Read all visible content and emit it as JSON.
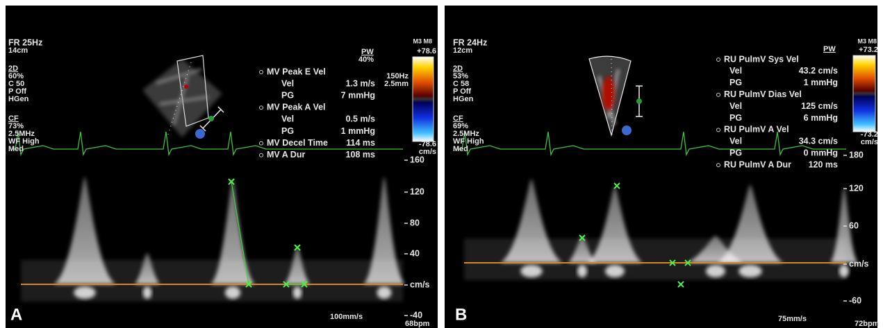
{
  "panels": [
    {
      "label": "A",
      "frame_rate": "FR 25Hz",
      "depth": "14cm",
      "settings_2d": {
        "title": "2D",
        "values": [
          "60%",
          "C 50",
          "P Off",
          "HGen"
        ]
      },
      "settings_cf": {
        "title": "CF",
        "values": [
          "73%",
          "2.5MHz",
          "WF High",
          "Med"
        ]
      },
      "probe": "M3 M8",
      "pw": {
        "title": "PW",
        "values": [
          "40%",
          "150Hz",
          "2.5mm"
        ]
      },
      "color_scale": {
        "max": "+78.6",
        "min": "-78.6",
        "unit": "cm/s"
      },
      "measurements": [
        {
          "name": "MV Peak E Vel",
          "rows": [
            [
              "Vel",
              "1.3 m/s"
            ],
            [
              "PG",
              "7 mmHg"
            ]
          ]
        },
        {
          "name": "MV Peak A Vel",
          "rows": [
            [
              "Vel",
              "0.5 m/s"
            ],
            [
              "PG",
              "1 mmHg"
            ]
          ]
        },
        {
          "name": "MV Decel Time",
          "value": "114 ms"
        },
        {
          "name": "MV A Dur",
          "value": "108 ms"
        }
      ],
      "velocity_scale": {
        "labels": [
          "160",
          "120",
          "80",
          "40",
          "-40"
        ],
        "unit": "cm/s"
      },
      "sweep": "100mm/s",
      "heart_rate": "68bpm"
    },
    {
      "label": "B",
      "frame_rate": "FR 24Hz",
      "depth": "12cm",
      "settings_2d": {
        "title": "2D",
        "values": [
          "53%",
          "C 58",
          "P Off",
          "HGen"
        ]
      },
      "settings_cf": {
        "title": "CF",
        "values": [
          "69%",
          "2.5MHz",
          "WF High",
          "Med"
        ]
      },
      "probe": "M3 M8",
      "pw": {
        "title": "PW"
      },
      "color_scale": {
        "max": "+73.2",
        "min": "-73.2",
        "unit": "cm/s"
      },
      "measurements": [
        {
          "name": "RU PulmV Sys Vel",
          "rows": [
            [
              "Vel",
              "43.2 cm/s"
            ],
            [
              "PG",
              "1 mmHg"
            ]
          ]
        },
        {
          "name": "RU PulmV Dias Vel",
          "rows": [
            [
              "Vel",
              "125 cm/s"
            ],
            [
              "PG",
              "6 mmHg"
            ]
          ]
        },
        {
          "name": "RU PulmV A Vel",
          "rows": [
            [
              "Vel",
              "34.3 cm/s"
            ],
            [
              "PG",
              "0 mmHg"
            ]
          ]
        },
        {
          "name": "RU PulmV A Dur",
          "value": "120 ms"
        }
      ],
      "velocity_scale": {
        "labels": [
          "180",
          "120",
          "60",
          "-60"
        ],
        "unit": "cm/s"
      },
      "sweep": "75mm/s",
      "heart_rate": "72bpm"
    }
  ]
}
